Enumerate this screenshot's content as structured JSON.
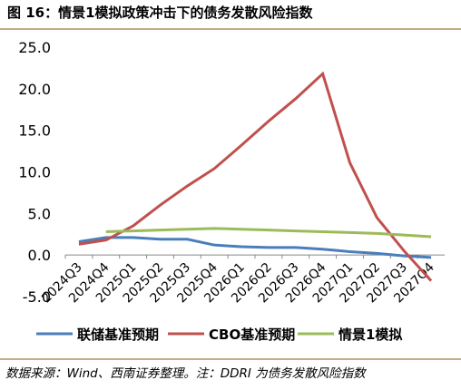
{
  "chart_data": {
    "type": "line",
    "title": "图 16：情景1模拟政策冲击下的债务发散风险指数",
    "source": "数据来源：Wind、西南证券整理。注：DDRI 为债务发散风险指数",
    "categories": [
      "2024Q3",
      "2024Q4",
      "2025Q1",
      "2025Q2",
      "2025Q3",
      "2025Q4",
      "2026Q1",
      "2026Q2",
      "2026Q3",
      "2026Q4",
      "2027Q1",
      "2027Q2",
      "2027Q3",
      "2027Q4"
    ],
    "series": [
      {
        "name": "联储基准预期",
        "color": "#4a7ebb",
        "values": [
          1.6,
          2.1,
          2.1,
          1.9,
          1.9,
          1.2,
          1.0,
          0.9,
          0.9,
          0.7,
          0.4,
          0.2,
          -0.1,
          -0.3
        ]
      },
      {
        "name": "CBO基准预期",
        "color": "#c0504d",
        "values": [
          1.3,
          1.8,
          3.5,
          6.0,
          8.3,
          10.4,
          13.2,
          16.1,
          18.8,
          21.8,
          11.1,
          4.5,
          0.5,
          -3.1
        ]
      },
      {
        "name": "情景1模拟",
        "color": "#9bbb59",
        "values": [
          null,
          2.8,
          2.9,
          3.0,
          3.1,
          3.2,
          3.1,
          3.0,
          2.9,
          2.8,
          2.7,
          2.6,
          2.4,
          2.2
        ]
      }
    ],
    "ylim": [
      -5,
      25
    ],
    "yticks": [
      {
        "value": -5,
        "label": "-5.0"
      },
      {
        "value": 0,
        "label": "0.0"
      },
      {
        "value": 5,
        "label": "5.0"
      },
      {
        "value": 10,
        "label": "10.0"
      },
      {
        "value": 15,
        "label": "15.0"
      },
      {
        "value": 20,
        "label": "20.0"
      },
      {
        "value": 25,
        "label": "25.0"
      }
    ],
    "legend": "bottom"
  }
}
